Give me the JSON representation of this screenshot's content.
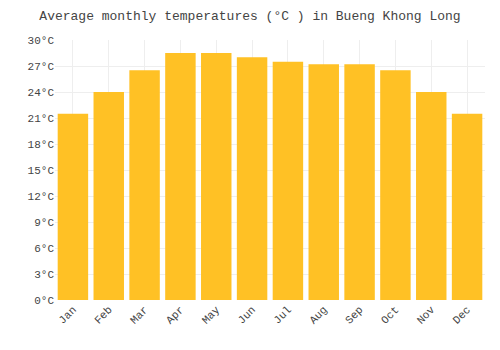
{
  "chart_data": {
    "type": "bar",
    "title": "Average monthly temperatures (°C ) in Bueng Khong Long",
    "categories": [
      "Jan",
      "Feb",
      "Mar",
      "Apr",
      "May",
      "Jun",
      "Jul",
      "Aug",
      "Sep",
      "Oct",
      "Nov",
      "Dec"
    ],
    "values": [
      21.5,
      24.0,
      26.5,
      28.5,
      28.5,
      28.0,
      27.5,
      27.2,
      27.2,
      26.5,
      24.0,
      21.5
    ],
    "color": "#FFC125",
    "ylim": [
      0,
      30
    ],
    "yticks": [
      {
        "value": 0,
        "label": "0°C"
      },
      {
        "value": 3,
        "label": "3°C"
      },
      {
        "value": 6,
        "label": "6°C"
      },
      {
        "value": 9,
        "label": "9°C"
      },
      {
        "value": 12,
        "label": "12°C"
      },
      {
        "value": 15,
        "label": "15°C"
      },
      {
        "value": 18,
        "label": "18°C"
      },
      {
        "value": 21,
        "label": "21°C"
      },
      {
        "value": 24,
        "label": "24°C"
      },
      {
        "value": 27,
        "label": "27°C"
      },
      {
        "value": 30,
        "label": "30°C"
      }
    ],
    "grid": true
  }
}
